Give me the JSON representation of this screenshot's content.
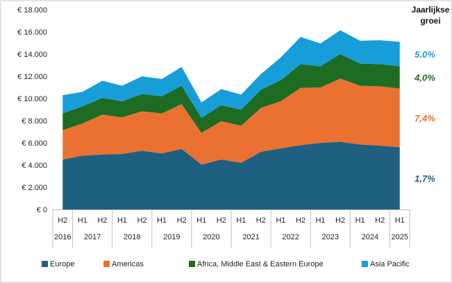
{
  "chart_data": {
    "type": "area",
    "stacked": true,
    "x_periods": [
      "H2",
      "H1",
      "H2",
      "H1",
      "H2",
      "H1",
      "H2",
      "H1",
      "H2",
      "H1",
      "H2",
      "H1",
      "H2",
      "H1",
      "H2",
      "H1",
      "H2",
      "H1"
    ],
    "x_years": [
      {
        "label": "2016"
      },
      {
        "label": "2017"
      },
      {
        "label": "2018"
      },
      {
        "label": "2019"
      },
      {
        "label": "2020"
      },
      {
        "label": "2021"
      },
      {
        "label": "2022"
      },
      {
        "label": "2023"
      },
      {
        "label": "2024"
      },
      {
        "label": "2025"
      }
    ],
    "ylim": [
      0,
      18000
    ],
    "y_ticks": [
      "€ 0",
      "€ 2.000",
      "€ 4.000",
      "€ 6.000",
      "€ 8.000",
      "€ 10.000",
      "€ 12.000",
      "€ 14.000",
      "€ 16.000",
      "€ 18.000"
    ],
    "series": [
      {
        "name": "Europe",
        "color": "#1f5f7f",
        "values": [
          4500,
          4850,
          4950,
          5000,
          5300,
          5050,
          5450,
          4050,
          4500,
          4200,
          5200,
          5500,
          5800,
          6000,
          6100,
          5850,
          5750,
          5600
        ]
      },
      {
        "name": "Americas",
        "color": "#ea7131",
        "values": [
          2650,
          2900,
          3600,
          3300,
          3550,
          3600,
          4050,
          2850,
          3450,
          3350,
          3950,
          4250,
          5150,
          5000,
          5700,
          5300,
          5350,
          5300
        ]
      },
      {
        "name": "Africa, Middle East & Eastern Europe",
        "color": "#1e6b24",
        "values": [
          1500,
          1550,
          1500,
          1450,
          1550,
          1550,
          1650,
          1350,
          1450,
          1450,
          1650,
          1900,
          2150,
          1900,
          2200,
          2000,
          2000,
          2000
        ]
      },
      {
        "name": "Asia Pacific",
        "color": "#179ed8",
        "values": [
          1650,
          1300,
          1550,
          1400,
          1600,
          1550,
          1700,
          1400,
          1450,
          1350,
          1400,
          2050,
          2450,
          2050,
          2150,
          2050,
          2150,
          2200
        ]
      }
    ],
    "growth_title": [
      "Jaarlijkse",
      "groei"
    ],
    "growth_labels": [
      {
        "text": "5.0%",
        "color": "#179ed8"
      },
      {
        "text": "4,0%",
        "color": "#1e6b24"
      },
      {
        "text": "7,4%",
        "color": "#ea7131"
      },
      {
        "text": "1,7%",
        "color": "#1f5f7f"
      }
    ],
    "legend_position": "bottom",
    "grid": false
  }
}
